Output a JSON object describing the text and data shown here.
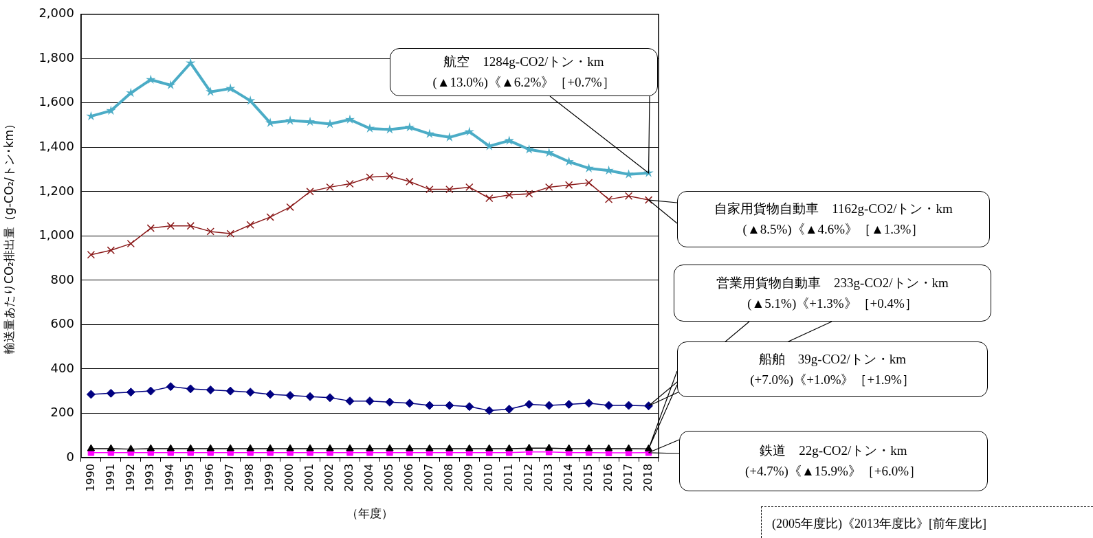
{
  "chart_data": {
    "type": "line",
    "xlabel": "（年度）",
    "ylabel": "輸送量あたりCO₂排出量（g-CO₂/トン･km）",
    "categories": [
      "1990",
      "1991",
      "1992",
      "1993",
      "1994",
      "1995",
      "1996",
      "1997",
      "1998",
      "1999",
      "2000",
      "2001",
      "2002",
      "2003",
      "2004",
      "2005",
      "2006",
      "2007",
      "2008",
      "2009",
      "2010",
      "2011",
      "2012",
      "2013",
      "2014",
      "2015",
      "2016",
      "2017",
      "2018"
    ],
    "series": [
      {
        "color": "#4bacc6",
        "marker": "star",
        "values": [
          1540,
          1565,
          1645,
          1705,
          1680,
          1780,
          1650,
          1665,
          1610,
          1510,
          1520,
          1515,
          1505,
          1525,
          1485,
          1480,
          1490,
          1460,
          1445,
          1470,
          1405,
          1430,
          1390,
          1375,
          1335,
          1305,
          1295,
          1278,
          1284
        ]
      },
      {
        "color": "#8b1a1a",
        "marker": "cross",
        "values": [
          915,
          935,
          965,
          1035,
          1045,
          1045,
          1020,
          1010,
          1050,
          1085,
          1130,
          1200,
          1220,
          1235,
          1265,
          1270,
          1245,
          1210,
          1210,
          1220,
          1170,
          1185,
          1190,
          1220,
          1230,
          1240,
          1165,
          1180,
          1162
        ]
      },
      {
        "color": "#000080",
        "marker": "diamond",
        "values": [
          285,
          290,
          295,
          300,
          320,
          310,
          305,
          300,
          295,
          285,
          280,
          275,
          270,
          255,
          255,
          250,
          245,
          235,
          235,
          230,
          212,
          218,
          240,
          235,
          240,
          245,
          235,
          235,
          233
        ]
      },
      {
        "color": "#000000",
        "marker": "triangle",
        "values": [
          40,
          40,
          38,
          40,
          40,
          40,
          40,
          40,
          40,
          40,
          40,
          40,
          40,
          40,
          40,
          40,
          40,
          40,
          40,
          40,
          40,
          40,
          42,
          42,
          40,
          40,
          40,
          40,
          39
        ]
      },
      {
        "color": "#ff00ff",
        "marker": "square",
        "values": [
          22,
          22,
          22,
          22,
          22,
          22,
          22,
          22,
          22,
          22,
          22,
          22,
          22,
          22,
          22,
          22,
          22,
          22,
          22,
          22,
          22,
          22,
          25,
          25,
          22,
          22,
          21,
          21,
          22
        ]
      }
    ],
    "ylim": [
      0,
      2000
    ],
    "yticks": [
      0,
      200,
      400,
      600,
      800,
      {
        "value": 1000,
        "label": "1,000"
      },
      {
        "value": 1200,
        "label": "1,200"
      },
      {
        "value": 1400,
        "label": "1,400"
      },
      {
        "value": 1600,
        "label": "1,600"
      },
      {
        "value": 1800,
        "label": "1,800"
      },
      {
        "value": 2000,
        "label": "2,000"
      }
    ],
    "grid": "y",
    "legend": false,
    "line_style": "solid",
    "annotations": [
      "航空　1284g-CO2/トン・km\n(▲13.0%)《▲6.2%》［+0.7%］",
      "自家用貨物自動車　1162g-CO2/トン・km\n(▲8.5%)《▲4.6%》［▲1.3%］",
      "営業用貨物自動車　233g-CO2/トン・km\n(▲5.1%)《+1.3%》［+0.4%］",
      "船舶　39g-CO2/トン・km\n(+7.0%)《+1.0%》［+1.9%］",
      "鉄道　22g-CO2/トン・km\n(+4.7%)《▲15.9%》［+6.0%］",
      "(2005年度比)《2013年度比》[前年度比]"
    ]
  }
}
